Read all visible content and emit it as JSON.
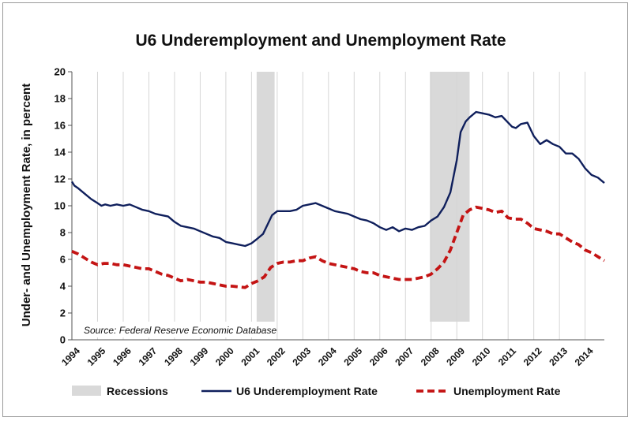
{
  "chart_data": {
    "type": "line",
    "title": "U6 Underemployment and Unemployment Rate",
    "ylabel": "Under- and Unemployment Rate, in percent",
    "xlabel": "",
    "ylim": [
      0,
      20
    ],
    "yticks": [
      0,
      2,
      4,
      6,
      8,
      10,
      12,
      14,
      16,
      18,
      20
    ],
    "xlim": [
      1994,
      2014.75
    ],
    "xticks": [
      "1994",
      "1995",
      "1996",
      "1997",
      "1998",
      "1999",
      "2000",
      "2001",
      "2002",
      "2003",
      "2004",
      "2005",
      "2006",
      "2007",
      "2008",
      "2009",
      "2010",
      "2011",
      "2012",
      "2013",
      "2014"
    ],
    "grid": "vertical",
    "legend_position": "bottom",
    "source_note": "Source: Federal Reserve Economic Database",
    "recessions": [
      {
        "start": 2001.2,
        "end": 2001.9
      },
      {
        "start": 2007.95,
        "end": 2009.5
      }
    ],
    "series": [
      {
        "name": "U6 Underemployment Rate",
        "color": "#0f1f5c",
        "style": "solid",
        "points": [
          [
            1994.0,
            11.8
          ],
          [
            1994.1,
            11.5
          ],
          [
            1994.25,
            11.3
          ],
          [
            1994.5,
            10.9
          ],
          [
            1994.75,
            10.5
          ],
          [
            1995.0,
            10.2
          ],
          [
            1995.15,
            10.0
          ],
          [
            1995.3,
            10.1
          ],
          [
            1995.5,
            10.0
          ],
          [
            1995.75,
            10.1
          ],
          [
            1996.0,
            10.0
          ],
          [
            1996.25,
            10.1
          ],
          [
            1996.5,
            9.9
          ],
          [
            1996.75,
            9.7
          ],
          [
            1997.0,
            9.6
          ],
          [
            1997.25,
            9.4
          ],
          [
            1997.5,
            9.3
          ],
          [
            1997.75,
            9.2
          ],
          [
            1998.0,
            8.8
          ],
          [
            1998.25,
            8.5
          ],
          [
            1998.5,
            8.4
          ],
          [
            1998.75,
            8.3
          ],
          [
            1999.0,
            8.1
          ],
          [
            1999.25,
            7.9
          ],
          [
            1999.5,
            7.7
          ],
          [
            1999.75,
            7.6
          ],
          [
            2000.0,
            7.3
          ],
          [
            2000.25,
            7.2
          ],
          [
            2000.5,
            7.1
          ],
          [
            2000.75,
            7.0
          ],
          [
            2001.0,
            7.2
          ],
          [
            2001.2,
            7.5
          ],
          [
            2001.45,
            7.9
          ],
          [
            2001.65,
            8.7
          ],
          [
            2001.8,
            9.3
          ],
          [
            2002.0,
            9.6
          ],
          [
            2002.25,
            9.6
          ],
          [
            2002.5,
            9.6
          ],
          [
            2002.75,
            9.7
          ],
          [
            2003.0,
            10.0
          ],
          [
            2003.25,
            10.1
          ],
          [
            2003.5,
            10.2
          ],
          [
            2003.75,
            10.0
          ],
          [
            2004.0,
            9.8
          ],
          [
            2004.25,
            9.6
          ],
          [
            2004.5,
            9.5
          ],
          [
            2004.75,
            9.4
          ],
          [
            2005.0,
            9.2
          ],
          [
            2005.25,
            9.0
          ],
          [
            2005.5,
            8.9
          ],
          [
            2005.75,
            8.7
          ],
          [
            2006.0,
            8.4
          ],
          [
            2006.25,
            8.2
          ],
          [
            2006.5,
            8.4
          ],
          [
            2006.75,
            8.1
          ],
          [
            2007.0,
            8.3
          ],
          [
            2007.25,
            8.2
          ],
          [
            2007.5,
            8.4
          ],
          [
            2007.75,
            8.5
          ],
          [
            2008.0,
            8.9
          ],
          [
            2008.25,
            9.2
          ],
          [
            2008.5,
            9.9
          ],
          [
            2008.75,
            11.0
          ],
          [
            2009.0,
            13.4
          ],
          [
            2009.15,
            15.5
          ],
          [
            2009.35,
            16.3
          ],
          [
            2009.5,
            16.6
          ],
          [
            2009.75,
            17.0
          ],
          [
            2010.0,
            16.9
          ],
          [
            2010.25,
            16.8
          ],
          [
            2010.5,
            16.6
          ],
          [
            2010.75,
            16.7
          ],
          [
            2011.0,
            16.2
          ],
          [
            2011.15,
            15.9
          ],
          [
            2011.3,
            15.8
          ],
          [
            2011.5,
            16.1
          ],
          [
            2011.75,
            16.2
          ],
          [
            2012.0,
            15.2
          ],
          [
            2012.25,
            14.6
          ],
          [
            2012.5,
            14.9
          ],
          [
            2012.75,
            14.6
          ],
          [
            2013.0,
            14.4
          ],
          [
            2013.25,
            13.9
          ],
          [
            2013.5,
            13.9
          ],
          [
            2013.75,
            13.5
          ],
          [
            2014.0,
            12.8
          ],
          [
            2014.25,
            12.3
          ],
          [
            2014.5,
            12.1
          ],
          [
            2014.75,
            11.7
          ]
        ]
      },
      {
        "name": "Unemployment Rate",
        "color": "#c41414",
        "style": "dashed",
        "points": [
          [
            1994.0,
            6.6
          ],
          [
            1994.25,
            6.4
          ],
          [
            1994.5,
            6.1
          ],
          [
            1994.75,
            5.8
          ],
          [
            1995.0,
            5.6
          ],
          [
            1995.25,
            5.7
          ],
          [
            1995.5,
            5.7
          ],
          [
            1995.75,
            5.6
          ],
          [
            1996.0,
            5.6
          ],
          [
            1996.25,
            5.5
          ],
          [
            1996.5,
            5.4
          ],
          [
            1996.75,
            5.3
          ],
          [
            1997.0,
            5.3
          ],
          [
            1997.25,
            5.1
          ],
          [
            1997.5,
            4.9
          ],
          [
            1997.75,
            4.8
          ],
          [
            1998.0,
            4.6
          ],
          [
            1998.25,
            4.4
          ],
          [
            1998.5,
            4.5
          ],
          [
            1998.75,
            4.4
          ],
          [
            1999.0,
            4.3
          ],
          [
            1999.25,
            4.3
          ],
          [
            1999.5,
            4.2
          ],
          [
            1999.75,
            4.1
          ],
          [
            2000.0,
            4.0
          ],
          [
            2000.25,
            4.0
          ],
          [
            2000.5,
            3.95
          ],
          [
            2000.75,
            3.9
          ],
          [
            2001.0,
            4.2
          ],
          [
            2001.25,
            4.4
          ],
          [
            2001.5,
            4.7
          ],
          [
            2001.75,
            5.4
          ],
          [
            2002.0,
            5.7
          ],
          [
            2002.25,
            5.8
          ],
          [
            2002.5,
            5.8
          ],
          [
            2002.75,
            5.9
          ],
          [
            2003.0,
            5.9
          ],
          [
            2003.25,
            6.1
          ],
          [
            2003.5,
            6.2
          ],
          [
            2003.75,
            5.9
          ],
          [
            2004.0,
            5.7
          ],
          [
            2004.25,
            5.6
          ],
          [
            2004.5,
            5.5
          ],
          [
            2004.75,
            5.4
          ],
          [
            2005.0,
            5.3
          ],
          [
            2005.25,
            5.1
          ],
          [
            2005.5,
            5.0
          ],
          [
            2005.75,
            5.0
          ],
          [
            2006.0,
            4.8
          ],
          [
            2006.25,
            4.7
          ],
          [
            2006.5,
            4.6
          ],
          [
            2006.75,
            4.5
          ],
          [
            2007.0,
            4.5
          ],
          [
            2007.25,
            4.5
          ],
          [
            2007.5,
            4.6
          ],
          [
            2007.75,
            4.7
          ],
          [
            2008.0,
            4.9
          ],
          [
            2008.25,
            5.3
          ],
          [
            2008.5,
            5.8
          ],
          [
            2008.75,
            6.7
          ],
          [
            2009.0,
            8.0
          ],
          [
            2009.25,
            9.3
          ],
          [
            2009.5,
            9.7
          ],
          [
            2009.75,
            9.9
          ],
          [
            2010.0,
            9.8
          ],
          [
            2010.25,
            9.7
          ],
          [
            2010.5,
            9.5
          ],
          [
            2010.75,
            9.6
          ],
          [
            2011.0,
            9.1
          ],
          [
            2011.25,
            9.0
          ],
          [
            2011.5,
            9.0
          ],
          [
            2011.75,
            8.7
          ],
          [
            2012.0,
            8.3
          ],
          [
            2012.25,
            8.2
          ],
          [
            2012.5,
            8.1
          ],
          [
            2012.75,
            7.9
          ],
          [
            2013.0,
            7.9
          ],
          [
            2013.25,
            7.6
          ],
          [
            2013.5,
            7.3
          ],
          [
            2013.75,
            7.1
          ],
          [
            2014.0,
            6.7
          ],
          [
            2014.25,
            6.5
          ],
          [
            2014.5,
            6.2
          ],
          [
            2014.75,
            5.9
          ]
        ]
      }
    ],
    "legend": [
      {
        "label": "Recessions",
        "kind": "band",
        "color": "#d9d9d9"
      },
      {
        "label": "U6 Underemployment Rate",
        "kind": "solid",
        "color": "#0f1f5c"
      },
      {
        "label": "Unemployment Rate",
        "kind": "dashed",
        "color": "#c41414"
      }
    ]
  }
}
